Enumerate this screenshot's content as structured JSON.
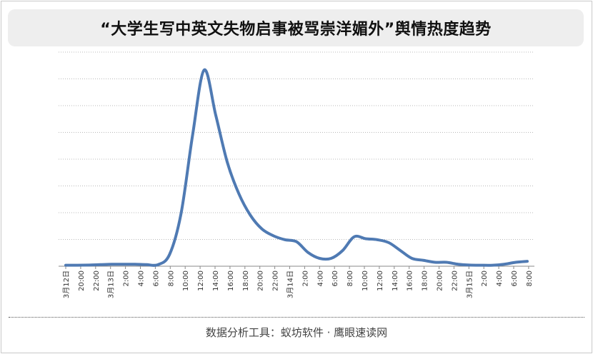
{
  "chart_data": {
    "type": "line",
    "title": "“大学生写中英文失物启事被骂崇洋媚外”舆情热度趋势",
    "xlabel": "",
    "ylabel": "",
    "grid": true,
    "legend": "none",
    "x_tick_labels": [
      "3月12日",
      "20:00",
      "22:00",
      "3月13日",
      "2:00",
      "4:00",
      "6:00",
      "8:00",
      "10:00",
      "12:00",
      "14:00",
      "16:00",
      "18:00",
      "20:00",
      "22:00",
      "3月14日",
      "2:00",
      "4:00",
      "6:00",
      "8:00",
      "10:00",
      "12:00",
      "14:00",
      "16:00",
      "18:00",
      "20:00",
      "22:00",
      "3月15日",
      "2:00",
      "4:00",
      "6:00",
      "8:00"
    ],
    "ylim": [
      0,
      100
    ],
    "series": [
      {
        "color": "#4f7ab3",
        "values": [
          0.5,
          0.5,
          0.6,
          0.8,
          1,
          1,
          1,
          0.8,
          0.8,
          6,
          27,
          67,
          100,
          77,
          53,
          37,
          26,
          19,
          15.5,
          13.5,
          12.5,
          7,
          4,
          4,
          8,
          15,
          14,
          13.5,
          12,
          8,
          4,
          3,
          2,
          2,
          1,
          0.6,
          0.5,
          0.5,
          1,
          2,
          2.5
        ]
      }
    ]
  },
  "footer": {
    "text": "数据分析工具：蚁坊软件 · 鹰眼速读网"
  }
}
